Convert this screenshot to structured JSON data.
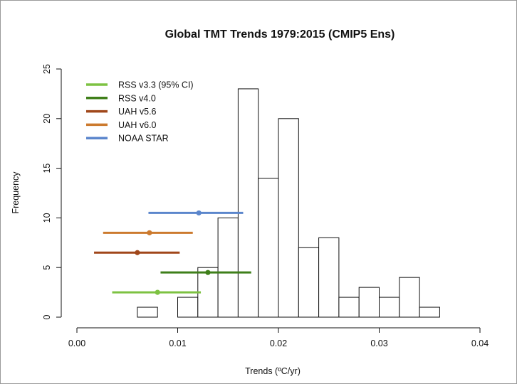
{
  "chart_data": {
    "type": "bar",
    "title": "Global TMT Trends 1979:2015 (CMIP5 Ens)",
    "xlabel": "Trends (ºC/yr)",
    "ylabel": "Frequency",
    "xlim": [
      0,
      0.04
    ],
    "ylim": [
      0,
      25
    ],
    "x_ticks": [
      "0.00",
      "0.01",
      "0.02",
      "0.03",
      "0.04"
    ],
    "y_ticks": [
      "0",
      "5",
      "10",
      "15",
      "20",
      "25"
    ],
    "histogram": {
      "bin_width": 0.002,
      "bins": [
        {
          "start": 0.006,
          "count": 1
        },
        {
          "start": 0.008,
          "count": 0
        },
        {
          "start": 0.01,
          "count": 2
        },
        {
          "start": 0.012,
          "count": 5
        },
        {
          "start": 0.014,
          "count": 10
        },
        {
          "start": 0.016,
          "count": 23
        },
        {
          "start": 0.018,
          "count": 14
        },
        {
          "start": 0.02,
          "count": 20
        },
        {
          "start": 0.022,
          "count": 7
        },
        {
          "start": 0.024,
          "count": 8
        },
        {
          "start": 0.026,
          "count": 2
        },
        {
          "start": 0.028,
          "count": 3
        },
        {
          "start": 0.03,
          "count": 2
        },
        {
          "start": 0.032,
          "count": 4
        },
        {
          "start": 0.034,
          "count": 1
        }
      ]
    },
    "series": [
      {
        "name": "RSS v3.3 (95% CI)",
        "color": "#7dc242",
        "estimate": 0.008,
        "ci": [
          0.0035,
          0.0123
        ],
        "y": 2.5
      },
      {
        "name": "RSS v4.0",
        "color": "#3f7f1a",
        "estimate": 0.013,
        "ci": [
          0.0083,
          0.0173
        ],
        "y": 4.5
      },
      {
        "name": "UAH v5.6",
        "color": "#a0471a",
        "estimate": 0.006,
        "ci": [
          0.0017,
          0.0102
        ],
        "y": 6.5
      },
      {
        "name": "UAH v6.0",
        "color": "#cc7a2e",
        "estimate": 0.0072,
        "ci": [
          0.0026,
          0.0115
        ],
        "y": 8.5
      },
      {
        "name": "NOAA STAR",
        "color": "#5b86cc",
        "estimate": 0.0121,
        "ci": [
          0.0071,
          0.0165
        ],
        "y": 10.5
      }
    ],
    "legend_position": "top-left",
    "grid": false
  }
}
